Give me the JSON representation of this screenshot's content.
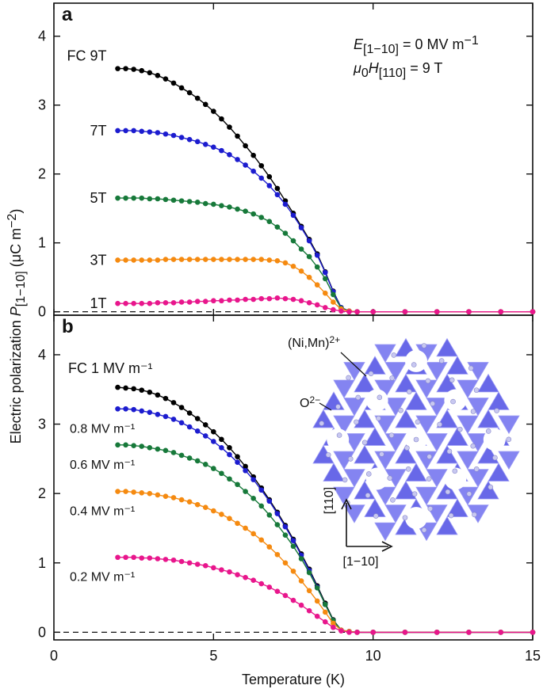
{
  "chart_data": [
    {
      "type": "line",
      "panel_label": "a",
      "x": [
        2,
        2.25,
        2.5,
        2.75,
        3,
        3.25,
        3.5,
        3.75,
        4,
        4.25,
        4.5,
        4.75,
        5,
        5.25,
        5.5,
        5.75,
        6,
        6.25,
        6.5,
        6.75,
        7,
        7.25,
        7.5,
        7.75,
        8,
        8.25,
        8.5,
        8.75,
        9,
        9.25,
        9.5,
        10,
        11,
        12,
        13,
        14,
        15
      ],
      "series": [
        {
          "name": "FC 9T",
          "color": "#000000",
          "values": [
            3.53,
            3.53,
            3.52,
            3.5,
            3.47,
            3.43,
            3.38,
            3.32,
            3.25,
            3.18,
            3.1,
            3.01,
            2.91,
            2.8,
            2.68,
            2.55,
            2.41,
            2.27,
            2.12,
            1.96,
            1.79,
            1.61,
            1.43,
            1.24,
            1.05,
            0.84,
            0.58,
            0.3,
            0.06,
            0.01,
            0,
            0,
            0,
            0,
            0,
            0,
            0
          ]
        },
        {
          "name": "7T",
          "color": "#1c1ccf",
          "values": [
            2.63,
            2.63,
            2.63,
            2.62,
            2.61,
            2.6,
            2.58,
            2.56,
            2.53,
            2.5,
            2.47,
            2.43,
            2.39,
            2.34,
            2.28,
            2.21,
            2.13,
            2.04,
            1.94,
            1.83,
            1.7,
            1.56,
            1.4,
            1.22,
            1.03,
            0.82,
            0.57,
            0.29,
            0.06,
            0.01,
            0,
            0,
            0,
            0,
            0,
            0,
            0
          ]
        },
        {
          "name": "5T",
          "color": "#17793a",
          "values": [
            1.65,
            1.65,
            1.65,
            1.65,
            1.64,
            1.64,
            1.63,
            1.62,
            1.61,
            1.6,
            1.59,
            1.57,
            1.56,
            1.54,
            1.52,
            1.49,
            1.46,
            1.42,
            1.37,
            1.31,
            1.23,
            1.14,
            1.03,
            0.91,
            0.8,
            0.65,
            0.48,
            0.25,
            0.05,
            0.01,
            0,
            0,
            0,
            0,
            0,
            0,
            0
          ]
        },
        {
          "name": "3T",
          "color": "#f58a10",
          "values": [
            0.75,
            0.75,
            0.75,
            0.75,
            0.75,
            0.75,
            0.76,
            0.76,
            0.76,
            0.76,
            0.76,
            0.76,
            0.76,
            0.76,
            0.76,
            0.76,
            0.76,
            0.76,
            0.76,
            0.75,
            0.74,
            0.71,
            0.66,
            0.59,
            0.5,
            0.39,
            0.27,
            0.14,
            0.04,
            0.01,
            0,
            0,
            0,
            0,
            0,
            0,
            0
          ]
        },
        {
          "name": "1T",
          "color": "#e8168c",
          "values": [
            0.12,
            0.12,
            0.12,
            0.12,
            0.12,
            0.13,
            0.13,
            0.13,
            0.14,
            0.14,
            0.15,
            0.15,
            0.16,
            0.16,
            0.17,
            0.17,
            0.18,
            0.18,
            0.19,
            0.19,
            0.2,
            0.19,
            0.18,
            0.16,
            0.13,
            0.1,
            0.06,
            0.03,
            0.01,
            0,
            0,
            0,
            0,
            0,
            0,
            0,
            0
          ]
        }
      ],
      "xlim": [
        0,
        15
      ],
      "xticks": [
        0,
        5,
        10,
        15
      ],
      "ylim": [
        -0.05,
        4.48
      ],
      "yticks": [
        0,
        1,
        2,
        3,
        4
      ],
      "reference_line": 0,
      "ylabel": [
        "Electric polarization ",
        "P",
        "[1−10]",
        " (μC m",
        "−2",
        ")"
      ],
      "annotations": {
        "field_E": [
          "E",
          "[1−10]",
          " = 0 MV m",
          "−1"
        ],
        "field_H": [
          "μ",
          "0",
          "H",
          "[110]",
          " = 9 T"
        ]
      }
    },
    {
      "type": "line",
      "panel_label": "b",
      "x": [
        2,
        2.25,
        2.5,
        2.75,
        3,
        3.25,
        3.5,
        3.75,
        4,
        4.25,
        4.5,
        4.75,
        5,
        5.25,
        5.5,
        5.75,
        6,
        6.25,
        6.5,
        6.75,
        7,
        7.25,
        7.5,
        7.75,
        8,
        8.25,
        8.5,
        8.75,
        9,
        9.25,
        9.5,
        10,
        11,
        12,
        13,
        14,
        15
      ],
      "series": [
        {
          "name": "FC 1 MV m⁻¹",
          "color": "#000000",
          "values": [
            3.53,
            3.52,
            3.51,
            3.49,
            3.46,
            3.42,
            3.37,
            3.31,
            3.24,
            3.16,
            3.08,
            2.99,
            2.89,
            2.78,
            2.66,
            2.53,
            2.39,
            2.24,
            2.08,
            1.91,
            1.73,
            1.54,
            1.34,
            1.13,
            0.91,
            0.67,
            0.42,
            0.18,
            0.03,
            0.01,
            0,
            0,
            0,
            0,
            0,
            0,
            0
          ]
        },
        {
          "name": "0.8 MV m⁻¹",
          "color": "#1c1ccf",
          "values": [
            3.22,
            3.22,
            3.21,
            3.19,
            3.17,
            3.14,
            3.11,
            3.07,
            3.02,
            2.96,
            2.9,
            2.83,
            2.75,
            2.66,
            2.56,
            2.45,
            2.33,
            2.2,
            2.05,
            1.89,
            1.71,
            1.52,
            1.32,
            1.11,
            0.89,
            0.65,
            0.4,
            0.17,
            0.03,
            0.01,
            0,
            0,
            0,
            0,
            0,
            0,
            0
          ]
        },
        {
          "name": "0.6 MV m⁻¹",
          "color": "#17793a",
          "values": [
            2.7,
            2.7,
            2.69,
            2.68,
            2.66,
            2.64,
            2.62,
            2.59,
            2.55,
            2.51,
            2.47,
            2.42,
            2.36,
            2.29,
            2.21,
            2.13,
            2.03,
            1.93,
            1.82,
            1.69,
            1.55,
            1.4,
            1.24,
            1.06,
            0.86,
            0.64,
            0.4,
            0.17,
            0.03,
            0.01,
            0,
            0,
            0,
            0,
            0,
            0,
            0
          ]
        },
        {
          "name": "0.4 MV m⁻¹",
          "color": "#f58a10",
          "values": [
            2.03,
            2.03,
            2.02,
            2.01,
            2.0,
            1.98,
            1.96,
            1.94,
            1.91,
            1.88,
            1.84,
            1.8,
            1.75,
            1.7,
            1.64,
            1.57,
            1.5,
            1.42,
            1.33,
            1.23,
            1.12,
            1.0,
            0.88,
            0.74,
            0.6,
            0.45,
            0.29,
            0.13,
            0.03,
            0.01,
            0,
            0,
            0,
            0,
            0,
            0,
            0
          ]
        },
        {
          "name": "0.2 MV m⁻¹",
          "color": "#e8168c",
          "values": [
            1.08,
            1.08,
            1.08,
            1.07,
            1.07,
            1.06,
            1.05,
            1.04,
            1.02,
            1.0,
            0.98,
            0.96,
            0.93,
            0.9,
            0.87,
            0.83,
            0.79,
            0.75,
            0.7,
            0.65,
            0.59,
            0.53,
            0.46,
            0.39,
            0.31,
            0.23,
            0.15,
            0.07,
            0.02,
            0,
            0,
            0,
            0,
            0,
            0,
            0,
            0
          ]
        }
      ],
      "xlim": [
        0,
        15
      ],
      "xticks": [
        0,
        5,
        10,
        15
      ],
      "ylim": [
        -0.11,
        4.57
      ],
      "yticks": [
        0,
        1,
        2,
        3,
        4
      ],
      "reference_line": 0,
      "xlabel": "Temperature (K)",
      "annotations": {
        "cation": [
          "(Ni,Mn)",
          "2+"
        ],
        "oxygen": [
          "O",
          "2−"
        ],
        "axis_110": "[110]",
        "axis_1m10": "[1−10]"
      }
    }
  ]
}
